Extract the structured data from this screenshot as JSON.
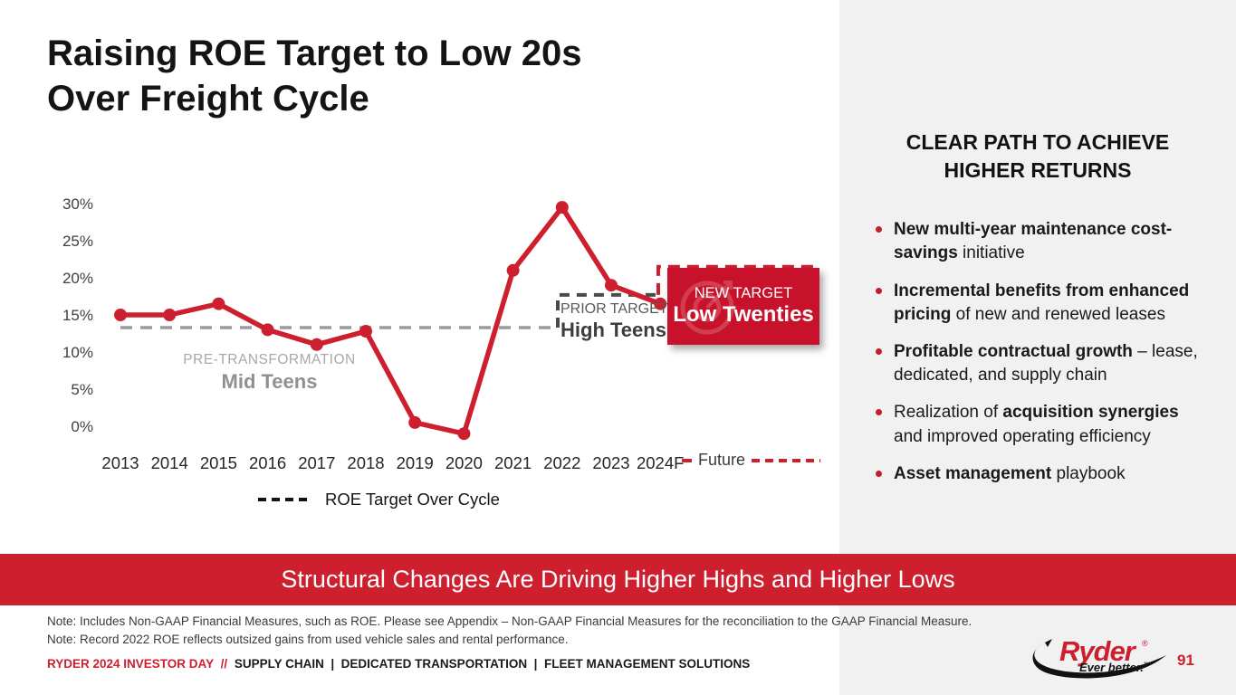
{
  "slide": {
    "title_line1": "Raising ROE Target to Low 20s",
    "title_line2": "Over Freight Cycle",
    "banner": "Structural Changes Are Driving Higher Highs and Higher Lows"
  },
  "right_panel": {
    "heading_line1": "CLEAR PATH TO ACHIEVE",
    "heading_line2": "HIGHER RETURNS",
    "bullets": [
      {
        "segments": [
          {
            "text": "New multi-year maintenance cost-savings",
            "bold": true
          },
          {
            "text": " initiative",
            "bold": false
          }
        ]
      },
      {
        "segments": [
          {
            "text": "Incremental benefits from enhanced pricing",
            "bold": true
          },
          {
            "text": " of new and renewed leases",
            "bold": false
          }
        ]
      },
      {
        "segments": [
          {
            "text": "Profitable contractual growth",
            "bold": true
          },
          {
            "text": " – lease, dedicated, and supply chain",
            "bold": false
          }
        ]
      },
      {
        "segments": [
          {
            "text": "Realization of ",
            "bold": false
          },
          {
            "text": "acquisition synergies",
            "bold": true
          },
          {
            "text": " and improved operating efficiency",
            "bold": false
          }
        ]
      },
      {
        "segments": [
          {
            "text": "Asset management",
            "bold": true
          },
          {
            "text": " playbook",
            "bold": false
          }
        ]
      }
    ]
  },
  "chart_data": {
    "type": "line",
    "title": "",
    "x": [
      "2013",
      "2014",
      "2015",
      "2016",
      "2017",
      "2018",
      "2019",
      "2020",
      "2021",
      "2022",
      "2023",
      "2024F"
    ],
    "series": [
      {
        "name": "ROE",
        "values": [
          15,
          15,
          16.5,
          13,
          11,
          12.8,
          0.5,
          -1,
          21,
          29.5,
          19,
          16.5
        ]
      }
    ],
    "ylim": [
      -2,
      31
    ],
    "yticks": [
      "30%",
      "25%",
      "20%",
      "15%",
      "10%",
      "5%",
      "0%"
    ],
    "ytick_values": [
      30,
      25,
      20,
      15,
      10,
      5,
      0
    ],
    "grid": "off",
    "pre_transformation": {
      "label": "PRE-TRANSFORMATION",
      "sublabel": "Mid Teens",
      "level": 13.3
    },
    "prior_target": {
      "label": "PRIOR TARGET",
      "sublabel": "High Teens",
      "level": 17.7
    },
    "new_target": {
      "label": "NEW TARGET",
      "sublabel": "Low Twenties",
      "level": 21.5
    },
    "future_legend_label": "Future",
    "legend_label": "ROE Target Over Cycle",
    "colors": {
      "line": "#ce1f2e",
      "pre_target_dash": "#9a9a9a",
      "prior_target_dash": "#4a4a4a",
      "new_target_dash": "#ce1f2e",
      "accent": "#ce1f2e",
      "panel_bg": "#f1f1f2"
    }
  },
  "footer": {
    "note1": "Note: Includes Non-GAAP Financial Measures, such as ROE. Please see Appendix – Non-GAAP Financial Measures for the reconciliation to the GAAP Financial Measure.",
    "note2": "Note: Record 2022 ROE reflects outsized gains from used vehicle sales and rental performance.",
    "event": "RYDER 2024 INVESTOR DAY",
    "separator": "//",
    "divisions": "SUPPLY CHAIN  |  DEDICATED TRANSPORTATION  |  FLEET MANAGEMENT SOLUTIONS",
    "logo_text": "Ryder",
    "logo_reg": "®",
    "logo_tagline": "Ever better.",
    "logo_tm": "™",
    "page": "91"
  }
}
